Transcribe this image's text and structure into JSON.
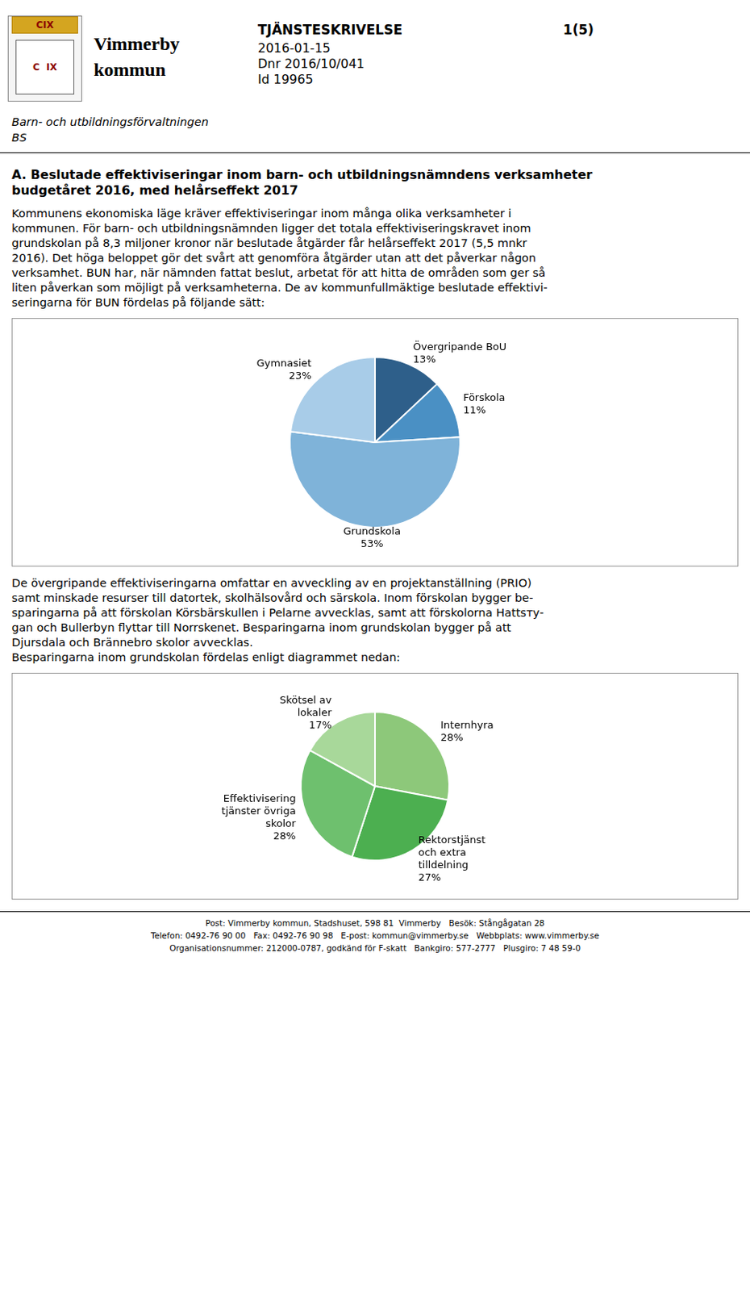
{
  "chart_data": [
    {
      "type": "pie",
      "categories": [
        "Övergripande BoU",
        "Förskola",
        "Grundskola",
        "Gymnasiet"
      ],
      "values": [
        13,
        11,
        53,
        23
      ],
      "value_labels": [
        "13%",
        "11%",
        "53%",
        "23%"
      ],
      "colors": [
        "#2E5F8A",
        "#4A90C4",
        "#7FB3D9",
        "#A8CCE8"
      ],
      "data_labels": true,
      "legend": false,
      "annotations": [
        "Vimmerby\nkommun",
        "TJÄNSTESKRIVELSE",
        "1(5)",
        "2016-01-15",
        "Dnr 2016/10/041",
        "Id 19965",
        "CIX",
        "C  IX",
        "Barn- och utbildningsförvaltningen\nBS",
        "A. Beslutade effektiviseringar inom barn- och utbildningsnämndens verksamheter\nbudgetåret 2016, med helårseffekt 2017",
        "Kommunens ekonomiska läge kräver effektiviseringar inom många olika verksamheter i\nkommunen. För barn- och utbildningsnämnden ligger det totala effektiviseringskravet inom\ngrundskolan på 8,3 miljoner kronor när beslutade åtgärder får helårseffekt 2017 (5,5 mnkr\n2016). Det höga beloppet gör det svårt att genomföra åtgärder utan att det påverkar någon\nverksamhet. BUN har, när nämnden fattat beslut, arbetat för att hitta de områden som ger så\nliten påverkan som möjligt på verksamheterna. De av kommunfullmäktige beslutade effektivi-\nseringarna för BUN fördelas på följande sätt:"
      ]
    },
    {
      "type": "pie",
      "categories": [
        "Internhyra",
        "Rektorstjänst\noch extra\ntilldelning",
        "Effektivisering\ntjänster övriga\nskolor",
        "Skötsel av\nlokaler"
      ],
      "values": [
        28,
        27,
        28,
        17
      ],
      "value_labels": [
        "28%",
        "27%",
        "28%",
        "17%"
      ],
      "colors": [
        "#8DC87A",
        "#4CAF50",
        "#6EC06E",
        "#A8D89A"
      ],
      "data_labels": true,
      "legend": false,
      "annotations": [
        "De övergripande effektiviseringarna omfattar en avveckling av en projektanställning (PRIO)\nsamt minskade resurser till datortek, skolhälsovård och särskola. Inom förskolan bygger be-\nsparingarna på att förskolan Körsbärskullen i Pelarne avvecklas, samt att förskolorna Hattsту-\ngan och Bullerbyn flyttar till Norrskenet. Besparingarna inom grundskolan bygger på att\nDjursdala och Brännebro skolor avvecklas.\nBesparingarna inom grundskolan fördelas enligt diagrammet nedan:",
        "Post: Vimmerby kommun, Stadshuset, 598 81  Vimmerby   Besök: Stångågatan 28\nTelefon: 0492-76 90 00   Fax: 0492-76 90 98   E-post: kommun@vimmerby.se   Webbplats: www.vimmerby.se\nOrganisationsnummer: 212000-0787, godkänd för F-skatt   Bankgiro: 577-2777   Plusgiro: 7 48 59-0"
      ]
    }
  ]
}
